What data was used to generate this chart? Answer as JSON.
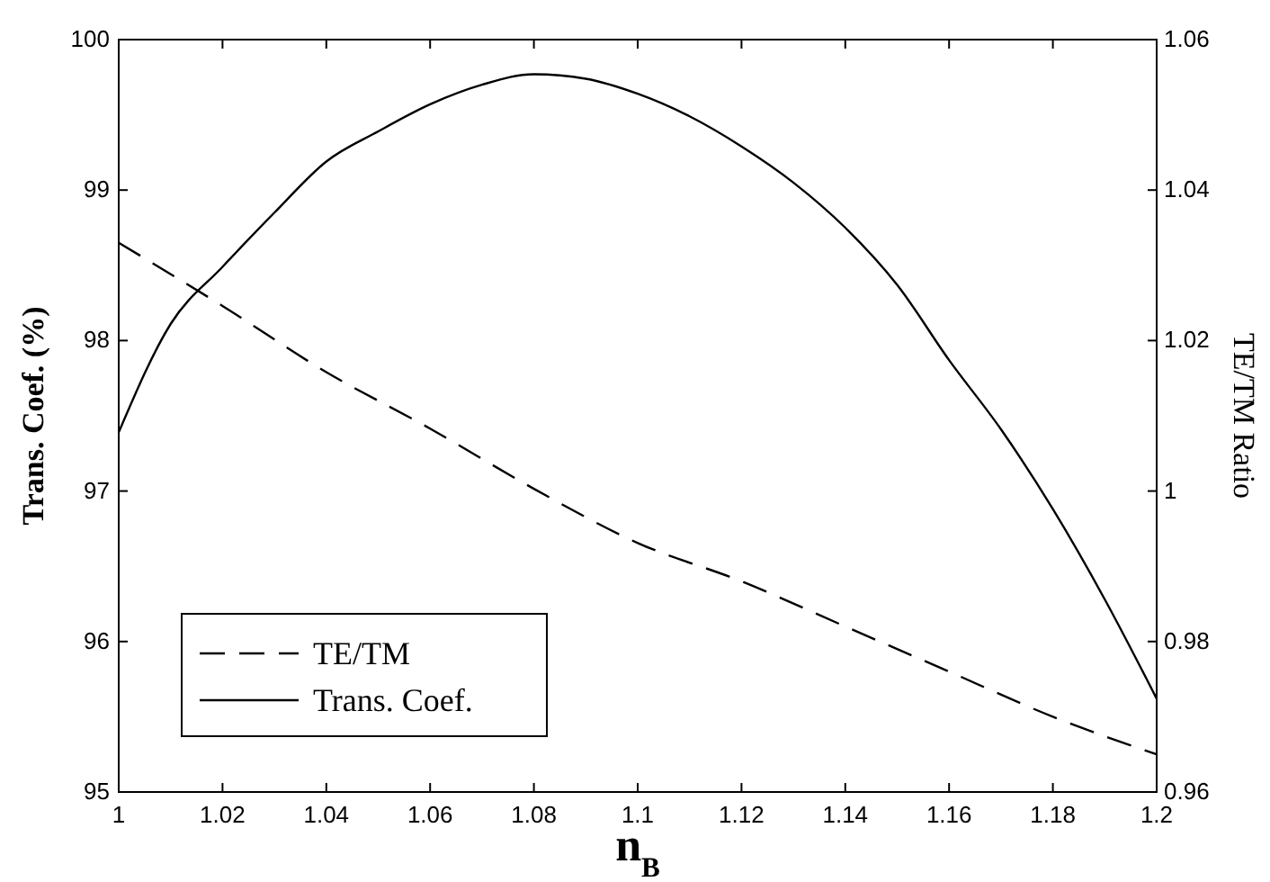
{
  "chart_data": {
    "type": "line",
    "xlabel": "n$_{B}$",
    "ylabel": "Trans. Coef. (%)",
    "y2label": "TE/TM Ratio",
    "x": [
      1,
      1.01,
      1.02,
      1.03,
      1.04,
      1.05,
      1.06,
      1.07,
      1.08,
      1.09,
      1.1,
      1.11,
      1.12,
      1.13,
      1.14,
      1.15,
      1.16,
      1.17,
      1.18,
      1.19,
      1.2
    ],
    "xlim": [
      1,
      1.2
    ],
    "xticks": [
      1,
      1.02,
      1.04,
      1.06,
      1.08,
      1.1,
      1.12,
      1.14,
      1.16,
      1.18,
      1.2
    ],
    "ylim": [
      95,
      100
    ],
    "yticks": [
      95,
      96,
      97,
      98,
      99,
      100
    ],
    "y2lim": [
      0.96,
      1.06
    ],
    "y2ticks": [
      0.96,
      0.98,
      1,
      1.02,
      1.04,
      1.06
    ],
    "series": [
      {
        "name": "TE/TM",
        "color": "#000000",
        "axis": "y2",
        "line_style": "dashed",
        "x": [
          1,
          1.02,
          1.04,
          1.06,
          1.08,
          1.1,
          1.12,
          1.14,
          1.16,
          1.18,
          1.2
        ],
        "values": [
          1.033,
          1.0246,
          1.0158,
          1.0083,
          1.0003,
          0.9931,
          0.988,
          0.982,
          0.976,
          0.97,
          0.965
        ]
      },
      {
        "name": "Trans. Coef.",
        "color": "#000000",
        "line_style": "solid",
        "values": [
          97.39,
          98.11,
          98.49,
          98.85,
          99.19,
          99.39,
          99.57,
          99.7,
          99.77,
          99.74,
          99.64,
          99.49,
          99.29,
          99.05,
          98.75,
          98.37,
          97.87,
          97.41,
          96.88,
          96.28,
          95.62
        ]
      }
    ],
    "legend": "bottom left",
    "grid": false,
    "marker": "none"
  }
}
